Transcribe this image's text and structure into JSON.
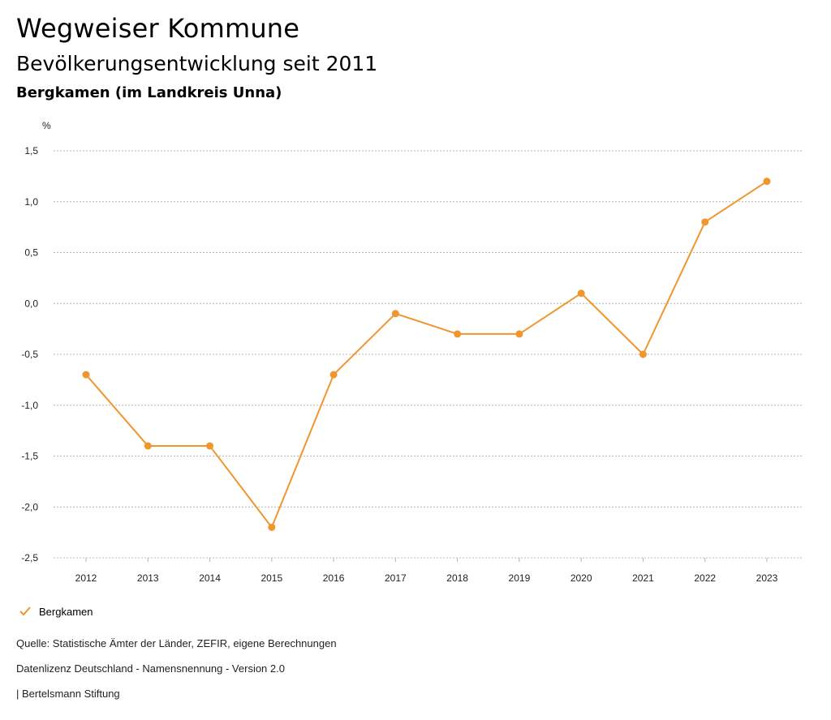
{
  "header": {
    "title": "Wegweiser Kommune",
    "subtitle": "Bevölkerungsentwicklung seit 2011",
    "region": "Bergkamen (im Landkreis Unna)"
  },
  "legend": {
    "label": "Bergkamen",
    "icon": "check-icon"
  },
  "footer": {
    "source": "Quelle: Statistische Ämter der Länder, ZEFIR, eigene Berechnungen",
    "license": "Datenlizenz Deutschland - Namensnennung - Version 2.0",
    "publisher": "| Bertelsmann Stiftung"
  },
  "colors": {
    "series": "#f0962e",
    "grid": "#b5b5b5"
  },
  "chart_data": {
    "type": "line",
    "title": "Bevölkerungsentwicklung seit 2011",
    "ylabel": "%",
    "xlabel": "",
    "categories": [
      "2012",
      "2013",
      "2014",
      "2015",
      "2016",
      "2017",
      "2018",
      "2019",
      "2020",
      "2021",
      "2022",
      "2023"
    ],
    "series": [
      {
        "name": "Bergkamen",
        "values": [
          -0.7,
          -1.4,
          -1.4,
          -2.2,
          -0.7,
          -0.1,
          -0.3,
          -0.3,
          0.1,
          -0.5,
          0.8,
          1.2
        ]
      }
    ],
    "ylim": [
      -2.5,
      1.5
    ],
    "yticks": [
      1.5,
      1.0,
      0.5,
      0.0,
      -0.5,
      -1.0,
      -1.5,
      -2.0,
      -2.5
    ],
    "ytick_labels": [
      "1,5",
      "1,0",
      "0,5",
      "0,0",
      "-0,5",
      "-1,0",
      "-1,5",
      "-2,0",
      "-2,5"
    ],
    "grid": true,
    "legend_position": "bottom-left"
  }
}
